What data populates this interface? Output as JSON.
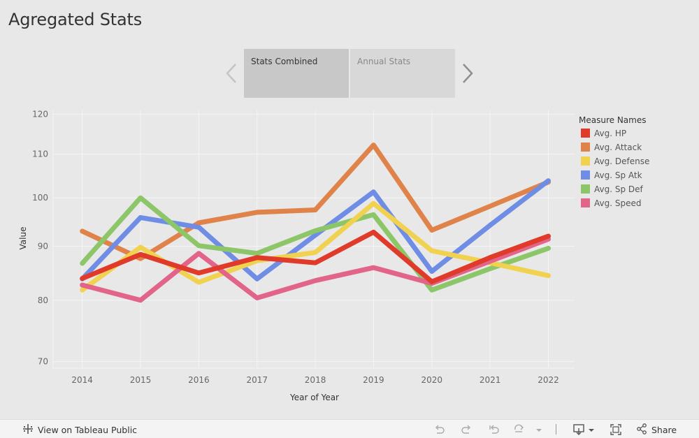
{
  "page": {
    "title": "Agregated Stats"
  },
  "tabs": [
    {
      "label": "Stats Combined",
      "active": true
    },
    {
      "label": "Annual Stats",
      "active": false
    }
  ],
  "footer": {
    "view_label": "View on Tableau Public",
    "share_label": "Share"
  },
  "chart_data": {
    "type": "line",
    "x": [
      2014,
      2015,
      2016,
      2017,
      2018,
      2019,
      2020,
      2021,
      2022
    ],
    "xlabel": "Year of Year",
    "ylabel": "Value",
    "yticks": [
      70,
      80,
      90,
      100,
      110,
      120
    ],
    "xlim": [
      2013.5,
      2022.45
    ],
    "ylim": [
      69,
      121
    ],
    "y_scale": "log",
    "grid": true,
    "legend": {
      "title": "Measure Names",
      "position": "right"
    },
    "series": [
      {
        "name": "Avg. Attack",
        "color": "#e0834a",
        "values": [
          93.0,
          87.6,
          94.7,
          96.9,
          97.4,
          112.2,
          93.2,
          98.2,
          103.5
        ]
      },
      {
        "name": "Avg. Sp Atk",
        "color": "#6f8de5",
        "values": [
          83.8,
          95.8,
          93.8,
          83.8,
          92.2,
          101.3,
          85.2,
          94.2,
          103.8
        ]
      },
      {
        "name": "Avg. Sp Def",
        "color": "#8cc668",
        "values": [
          86.7,
          100.0,
          90.1,
          88.6,
          93.1,
          96.4,
          81.8,
          85.7,
          89.6
        ]
      },
      {
        "name": "Avg. Defense",
        "color": "#f0d250",
        "values": [
          81.8,
          89.8,
          83.2,
          87.2,
          88.8,
          98.8,
          89.1,
          86.8,
          84.4
        ]
      },
      {
        "name": "Avg. Speed",
        "color": "#e26488",
        "values": [
          82.7,
          80.0,
          88.6,
          80.4,
          83.5,
          85.9,
          83.0,
          87.1,
          91.4
        ]
      },
      {
        "name": "Avg. HP",
        "color": "#e03a2a",
        "values": [
          83.9,
          88.4,
          84.9,
          87.8,
          86.8,
          92.8,
          83.3,
          87.8,
          92.0
        ]
      }
    ],
    "legend_order": [
      "Avg. HP",
      "Avg. Attack",
      "Avg. Defense",
      "Avg. Sp Atk",
      "Avg. Sp Def",
      "Avg. Speed"
    ]
  }
}
